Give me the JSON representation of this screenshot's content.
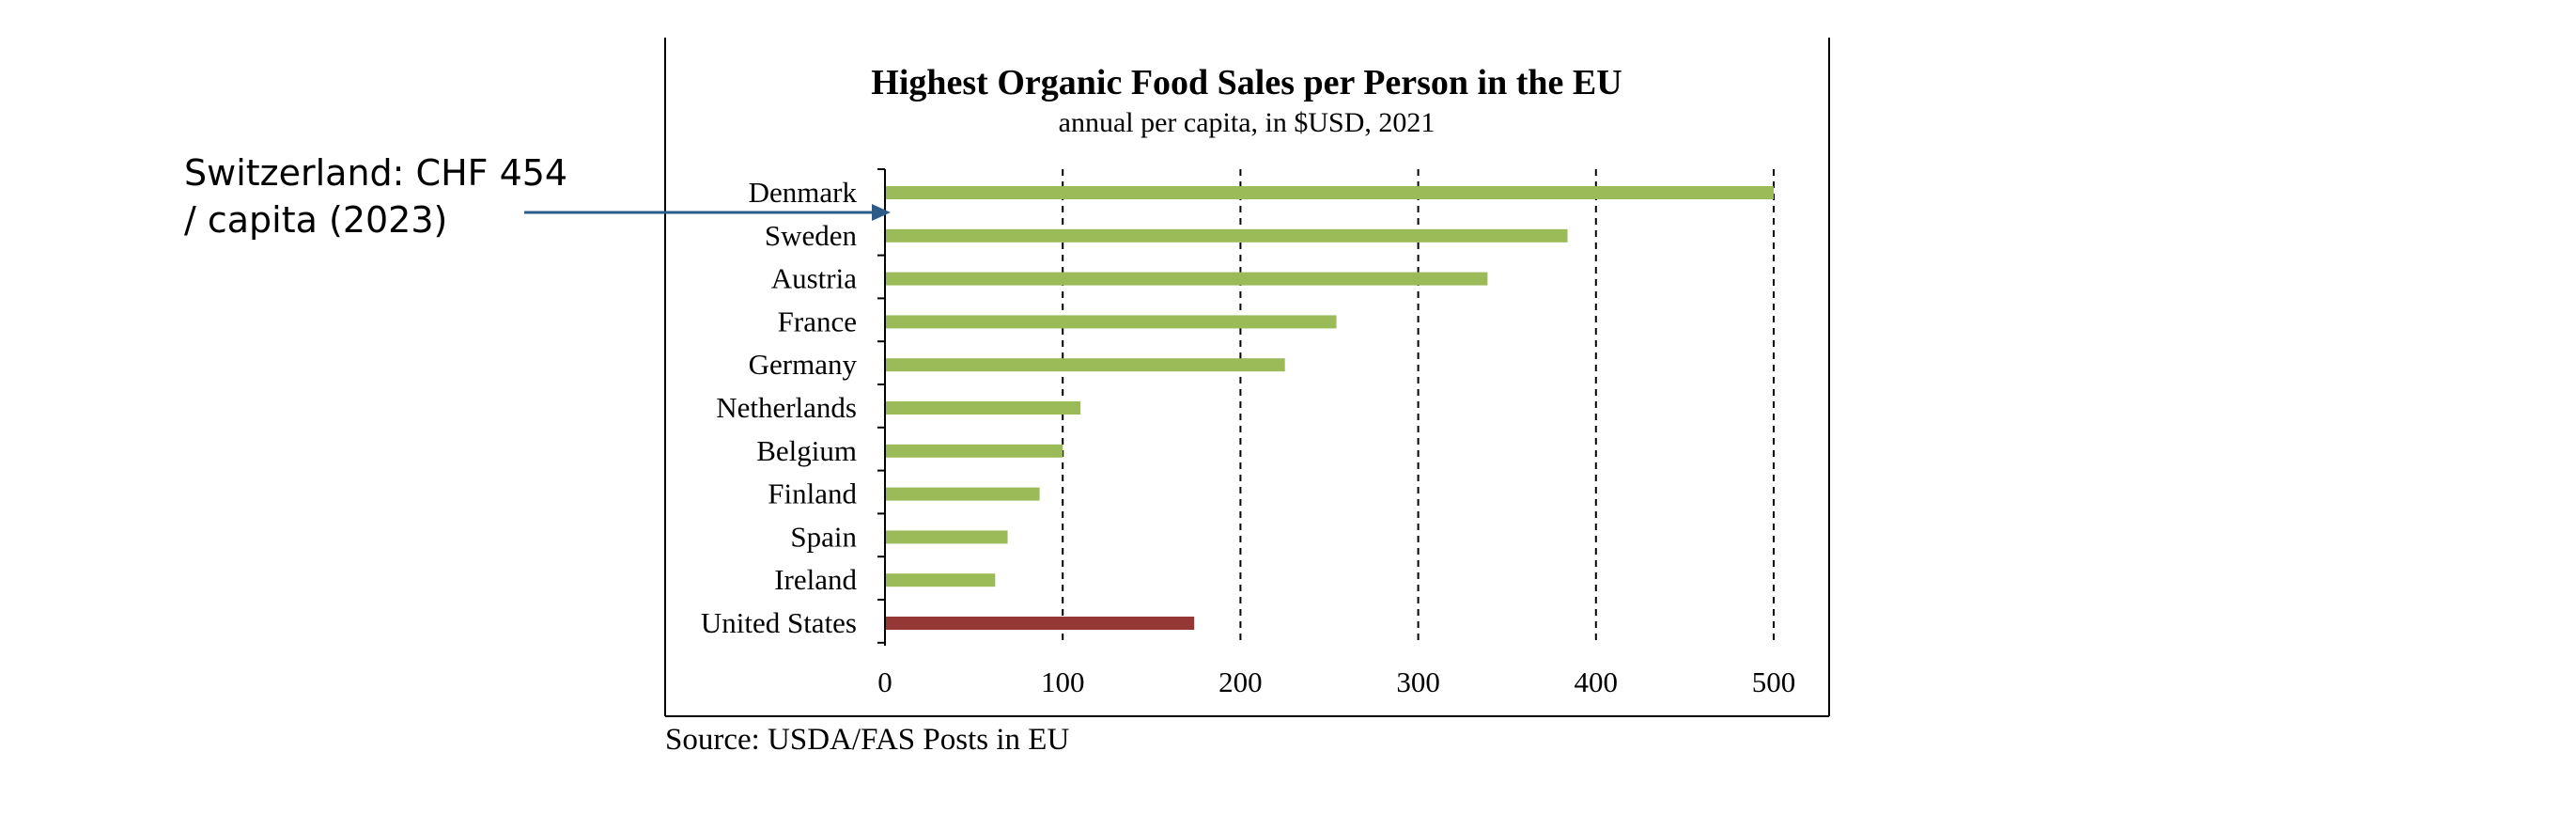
{
  "chart_data": {
    "type": "bar",
    "orientation": "horizontal",
    "title": "Highest Organic Food Sales per Person in the EU",
    "subtitle": "annual per capita, in $USD, 2021",
    "categories": [
      "Denmark",
      "Sweden",
      "Austria",
      "France",
      "Germany",
      "Netherlands",
      "Belgium",
      "Finland",
      "Spain",
      "Ireland",
      "United States"
    ],
    "values": [
      500,
      384,
      339,
      254,
      225,
      110,
      100,
      87,
      69,
      62,
      174
    ],
    "bar_colors": [
      "#9bbb59",
      "#9bbb59",
      "#9bbb59",
      "#9bbb59",
      "#9bbb59",
      "#9bbb59",
      "#9bbb59",
      "#9bbb59",
      "#9bbb59",
      "#9bbb59",
      "#953735"
    ],
    "xlim": [
      0,
      500
    ],
    "xticks": [
      0,
      100,
      200,
      300,
      400,
      500
    ],
    "xtick_labels": [
      "0",
      "100",
      "200",
      "300",
      "400",
      "500"
    ],
    "grid": "vertical dashed",
    "xlabel": "",
    "ylabel": "",
    "source": "Source: USDA/FAS Posts in EU",
    "annotation": {
      "lines": [
        "Switzerland: CHF 454",
        "/ capita (2023)"
      ],
      "arrow_color": "#2e5c8a",
      "arrow_target_category": "Denmark"
    }
  }
}
